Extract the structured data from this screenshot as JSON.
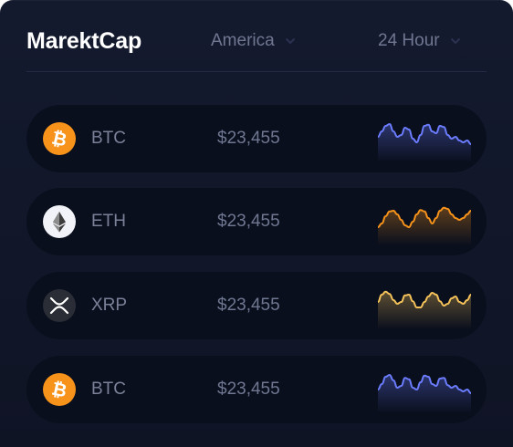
{
  "header": {
    "title": "MarektCap",
    "region_dropdown": {
      "value": "America",
      "icon": "chevron-down-icon"
    },
    "period_dropdown": {
      "value": "24 Hour",
      "icon": "chevron-down-icon"
    }
  },
  "rows": [
    {
      "symbol": "BTC",
      "price": "$23,455",
      "icon": "bitcoin-icon",
      "icon_bg": "#f7931a",
      "trend_color": "#6b7cff",
      "trend": [
        0.55,
        0.7,
        0.85,
        0.9,
        0.7,
        0.55,
        0.6,
        0.8,
        0.75,
        0.5,
        0.4,
        0.6,
        0.85,
        0.88,
        0.7,
        0.65,
        0.85,
        0.82,
        0.6,
        0.5,
        0.55,
        0.45,
        0.4,
        0.45,
        0.35
      ]
    },
    {
      "symbol": "ETH",
      "price": "$23,455",
      "icon": "ethereum-icon",
      "icon_bg": "#f2f3f8",
      "trend_color": "#f7931a",
      "trend": [
        0.35,
        0.45,
        0.65,
        0.78,
        0.8,
        0.7,
        0.55,
        0.4,
        0.35,
        0.5,
        0.7,
        0.82,
        0.78,
        0.6,
        0.45,
        0.6,
        0.8,
        0.88,
        0.85,
        0.7,
        0.6,
        0.55,
        0.6,
        0.7,
        0.8
      ]
    },
    {
      "symbol": "XRP",
      "price": "$23,455",
      "icon": "xrp-icon",
      "icon_bg": "#2a2d35",
      "trend_color": "#f5c35a",
      "trend": [
        0.6,
        0.8,
        0.88,
        0.82,
        0.65,
        0.55,
        0.6,
        0.78,
        0.8,
        0.62,
        0.45,
        0.45,
        0.6,
        0.75,
        0.85,
        0.8,
        0.62,
        0.5,
        0.55,
        0.7,
        0.75,
        0.6,
        0.55,
        0.65,
        0.8
      ]
    },
    {
      "symbol": "BTC",
      "price": "$23,455",
      "icon": "bitcoin-icon",
      "icon_bg": "#f7931a",
      "trend_color": "#6b7cff",
      "trend": [
        0.5,
        0.65,
        0.85,
        0.9,
        0.75,
        0.55,
        0.6,
        0.82,
        0.78,
        0.55,
        0.5,
        0.7,
        0.88,
        0.85,
        0.65,
        0.6,
        0.8,
        0.82,
        0.62,
        0.55,
        0.6,
        0.5,
        0.45,
        0.5,
        0.4
      ]
    }
  ]
}
